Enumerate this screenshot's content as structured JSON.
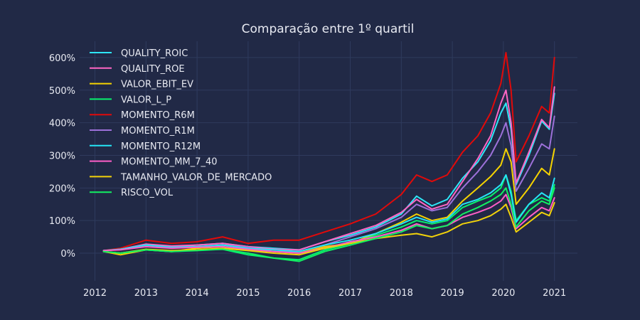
{
  "chart_data": {
    "type": "line",
    "title": "Comparação entre 1º quartil",
    "xlabel": "",
    "ylabel": "",
    "xlim": [
      2011.7,
      2021.45
    ],
    "ylim": [
      -85,
      650
    ],
    "x_ticks": [
      2012,
      2013,
      2014,
      2015,
      2016,
      2017,
      2018,
      2019,
      2020,
      2021
    ],
    "y_ticks": [
      0,
      100,
      200,
      300,
      400,
      500,
      600
    ],
    "x_tick_labels": [
      "2012",
      "2013",
      "2014",
      "2015",
      "2016",
      "2017",
      "2018",
      "2019",
      "2020",
      "2021"
    ],
    "y_tick_labels": [
      "0%",
      "100%",
      "200%",
      "300%",
      "400%",
      "500%",
      "600%"
    ],
    "grid": true,
    "legend_position": "top-left",
    "background": "#212946",
    "grid_color": "#2f3b5e",
    "series": [
      {
        "name": "QUALITY_ROIC",
        "color": "#2ee6f7",
        "points": [
          [
            2012.17,
            8
          ],
          [
            2012.5,
            12
          ],
          [
            2013.0,
            25
          ],
          [
            2013.5,
            20
          ],
          [
            2014.0,
            25
          ],
          [
            2014.5,
            30
          ],
          [
            2015.0,
            20
          ],
          [
            2015.5,
            15
          ],
          [
            2016.0,
            10
          ],
          [
            2016.5,
            35
          ],
          [
            2017.0,
            55
          ],
          [
            2017.5,
            80
          ],
          [
            2018.0,
            120
          ],
          [
            2018.3,
            175
          ],
          [
            2018.6,
            145
          ],
          [
            2018.9,
            165
          ],
          [
            2019.2,
            230
          ],
          [
            2019.5,
            280
          ],
          [
            2019.75,
            345
          ],
          [
            2019.95,
            430
          ],
          [
            2020.05,
            460
          ],
          [
            2020.15,
            380
          ],
          [
            2020.25,
            210
          ],
          [
            2020.5,
            300
          ],
          [
            2020.75,
            405
          ],
          [
            2020.9,
            380
          ],
          [
            2021.0,
            490
          ]
        ]
      },
      {
        "name": "QUALITY_ROE",
        "color": "#ff66c4",
        "points": [
          [
            2012.17,
            8
          ],
          [
            2012.5,
            12
          ],
          [
            2013.0,
            28
          ],
          [
            2013.5,
            22
          ],
          [
            2014.0,
            25
          ],
          [
            2014.5,
            30
          ],
          [
            2015.0,
            20
          ],
          [
            2015.5,
            12
          ],
          [
            2016.0,
            10
          ],
          [
            2016.5,
            35
          ],
          [
            2017.0,
            60
          ],
          [
            2017.5,
            85
          ],
          [
            2018.0,
            125
          ],
          [
            2018.3,
            165
          ],
          [
            2018.6,
            135
          ],
          [
            2018.9,
            150
          ],
          [
            2019.2,
            220
          ],
          [
            2019.5,
            290
          ],
          [
            2019.75,
            360
          ],
          [
            2019.95,
            460
          ],
          [
            2020.05,
            500
          ],
          [
            2020.15,
            400
          ],
          [
            2020.25,
            215
          ],
          [
            2020.5,
            310
          ],
          [
            2020.75,
            410
          ],
          [
            2020.9,
            385
          ],
          [
            2021.0,
            510
          ]
        ]
      },
      {
        "name": "VALOR_EBIT_EV",
        "color": "#f5d300",
        "points": [
          [
            2012.17,
            5
          ],
          [
            2012.5,
            -5
          ],
          [
            2013.0,
            10
          ],
          [
            2013.5,
            5
          ],
          [
            2014.0,
            15
          ],
          [
            2014.5,
            20
          ],
          [
            2015.0,
            10
          ],
          [
            2015.5,
            5
          ],
          [
            2016.0,
            0
          ],
          [
            2016.5,
            20
          ],
          [
            2017.0,
            30
          ],
          [
            2017.5,
            60
          ],
          [
            2018.0,
            95
          ],
          [
            2018.3,
            120
          ],
          [
            2018.6,
            100
          ],
          [
            2018.9,
            110
          ],
          [
            2019.2,
            160
          ],
          [
            2019.5,
            200
          ],
          [
            2019.75,
            235
          ],
          [
            2019.95,
            270
          ],
          [
            2020.05,
            320
          ],
          [
            2020.15,
            280
          ],
          [
            2020.25,
            150
          ],
          [
            2020.5,
            200
          ],
          [
            2020.75,
            260
          ],
          [
            2020.9,
            240
          ],
          [
            2021.0,
            320
          ]
        ]
      },
      {
        "name": "VALOR_L_P",
        "color": "#08f26e",
        "points": [
          [
            2012.17,
            5
          ],
          [
            2012.5,
            0
          ],
          [
            2013.0,
            10
          ],
          [
            2013.5,
            5
          ],
          [
            2014.0,
            10
          ],
          [
            2014.5,
            12
          ],
          [
            2015.0,
            -5
          ],
          [
            2015.5,
            -15
          ],
          [
            2016.0,
            -20
          ],
          [
            2016.5,
            10
          ],
          [
            2017.0,
            30
          ],
          [
            2017.5,
            55
          ],
          [
            2018.0,
            80
          ],
          [
            2018.3,
            100
          ],
          [
            2018.6,
            90
          ],
          [
            2018.9,
            100
          ],
          [
            2019.2,
            140
          ],
          [
            2019.5,
            160
          ],
          [
            2019.75,
            175
          ],
          [
            2019.95,
            200
          ],
          [
            2020.05,
            240
          ],
          [
            2020.15,
            190
          ],
          [
            2020.25,
            100
          ],
          [
            2020.5,
            150
          ],
          [
            2020.75,
            170
          ],
          [
            2020.9,
            160
          ],
          [
            2021.0,
            210
          ]
        ]
      },
      {
        "name": "MOMENTO_R6M",
        "color": "#e10a0a",
        "points": [
          [
            2012.17,
            8
          ],
          [
            2012.5,
            15
          ],
          [
            2013.0,
            40
          ],
          [
            2013.5,
            30
          ],
          [
            2014.0,
            35
          ],
          [
            2014.5,
            50
          ],
          [
            2015.0,
            30
          ],
          [
            2015.5,
            40
          ],
          [
            2016.0,
            40
          ],
          [
            2016.5,
            65
          ],
          [
            2017.0,
            90
          ],
          [
            2017.5,
            120
          ],
          [
            2018.0,
            180
          ],
          [
            2018.3,
            240
          ],
          [
            2018.6,
            220
          ],
          [
            2018.9,
            240
          ],
          [
            2019.2,
            310
          ],
          [
            2019.5,
            360
          ],
          [
            2019.75,
            430
          ],
          [
            2019.95,
            520
          ],
          [
            2020.05,
            615
          ],
          [
            2020.15,
            500
          ],
          [
            2020.25,
            280
          ],
          [
            2020.5,
            360
          ],
          [
            2020.75,
            450
          ],
          [
            2020.9,
            430
          ],
          [
            2021.0,
            600
          ]
        ]
      },
      {
        "name": "MOMENTO_R1M",
        "color": "#9d71d9",
        "points": [
          [
            2012.17,
            8
          ],
          [
            2012.5,
            12
          ],
          [
            2013.0,
            25
          ],
          [
            2013.5,
            18
          ],
          [
            2014.0,
            20
          ],
          [
            2014.5,
            25
          ],
          [
            2015.0,
            18
          ],
          [
            2015.5,
            5
          ],
          [
            2016.0,
            5
          ],
          [
            2016.5,
            25
          ],
          [
            2017.0,
            50
          ],
          [
            2017.5,
            75
          ],
          [
            2018.0,
            110
          ],
          [
            2018.3,
            150
          ],
          [
            2018.6,
            130
          ],
          [
            2018.9,
            140
          ],
          [
            2019.2,
            200
          ],
          [
            2019.5,
            250
          ],
          [
            2019.75,
            300
          ],
          [
            2019.95,
            360
          ],
          [
            2020.05,
            400
          ],
          [
            2020.15,
            330
          ],
          [
            2020.25,
            190
          ],
          [
            2020.5,
            260
          ],
          [
            2020.75,
            335
          ],
          [
            2020.9,
            320
          ],
          [
            2021.0,
            420
          ]
        ]
      },
      {
        "name": "MOMENTO_R12M",
        "color": "#25e5f5",
        "points": [
          [
            2012.17,
            8
          ],
          [
            2012.5,
            12
          ],
          [
            2013.0,
            25
          ],
          [
            2013.5,
            18
          ],
          [
            2014.0,
            20
          ],
          [
            2014.5,
            25
          ],
          [
            2015.0,
            15
          ],
          [
            2015.5,
            10
          ],
          [
            2016.0,
            5
          ],
          [
            2016.5,
            25
          ],
          [
            2017.0,
            40
          ],
          [
            2017.5,
            60
          ],
          [
            2018.0,
            90
          ],
          [
            2018.3,
            110
          ],
          [
            2018.6,
            95
          ],
          [
            2018.9,
            105
          ],
          [
            2019.2,
            150
          ],
          [
            2019.5,
            165
          ],
          [
            2019.75,
            185
          ],
          [
            2019.95,
            210
          ],
          [
            2020.05,
            240
          ],
          [
            2020.15,
            180
          ],
          [
            2020.25,
            95
          ],
          [
            2020.5,
            150
          ],
          [
            2020.75,
            185
          ],
          [
            2020.9,
            170
          ],
          [
            2021.0,
            230
          ]
        ]
      },
      {
        "name": "MOMENTO_MM_7_40",
        "color": "#ff5ec8",
        "points": [
          [
            2012.17,
            8
          ],
          [
            2012.5,
            10
          ],
          [
            2013.0,
            20
          ],
          [
            2013.5,
            15
          ],
          [
            2014.0,
            18
          ],
          [
            2014.5,
            20
          ],
          [
            2015.0,
            12
          ],
          [
            2015.5,
            5
          ],
          [
            2016.0,
            0
          ],
          [
            2016.5,
            15
          ],
          [
            2017.0,
            35
          ],
          [
            2017.5,
            50
          ],
          [
            2018.0,
            70
          ],
          [
            2018.3,
            90
          ],
          [
            2018.6,
            75
          ],
          [
            2018.9,
            85
          ],
          [
            2019.2,
            110
          ],
          [
            2019.5,
            125
          ],
          [
            2019.75,
            140
          ],
          [
            2019.95,
            160
          ],
          [
            2020.05,
            180
          ],
          [
            2020.15,
            140
          ],
          [
            2020.25,
            75
          ],
          [
            2020.5,
            110
          ],
          [
            2020.75,
            140
          ],
          [
            2020.9,
            130
          ],
          [
            2021.0,
            170
          ]
        ]
      },
      {
        "name": "TAMANHO_VALOR_DE_MERCADO",
        "color": "#f2d20a",
        "points": [
          [
            2012.17,
            5
          ],
          [
            2012.5,
            0
          ],
          [
            2013.0,
            12
          ],
          [
            2013.5,
            8
          ],
          [
            2014.0,
            10
          ],
          [
            2014.5,
            15
          ],
          [
            2015.0,
            8
          ],
          [
            2015.5,
            0
          ],
          [
            2016.0,
            -5
          ],
          [
            2016.5,
            15
          ],
          [
            2017.0,
            30
          ],
          [
            2017.5,
            45
          ],
          [
            2018.0,
            55
          ],
          [
            2018.3,
            60
          ],
          [
            2018.6,
            50
          ],
          [
            2018.9,
            65
          ],
          [
            2019.2,
            90
          ],
          [
            2019.5,
            100
          ],
          [
            2019.75,
            115
          ],
          [
            2019.95,
            135
          ],
          [
            2020.05,
            150
          ],
          [
            2020.15,
            110
          ],
          [
            2020.25,
            65
          ],
          [
            2020.5,
            95
          ],
          [
            2020.75,
            125
          ],
          [
            2020.9,
            115
          ],
          [
            2021.0,
            155
          ]
        ]
      },
      {
        "name": "RISCO_VOL",
        "color": "#12f062",
        "points": [
          [
            2012.17,
            5
          ],
          [
            2012.5,
            0
          ],
          [
            2013.0,
            10
          ],
          [
            2013.5,
            5
          ],
          [
            2014.0,
            8
          ],
          [
            2014.5,
            12
          ],
          [
            2015.0,
            0
          ],
          [
            2015.5,
            -15
          ],
          [
            2016.0,
            -25
          ],
          [
            2016.5,
            5
          ],
          [
            2017.0,
            25
          ],
          [
            2017.5,
            45
          ],
          [
            2018.0,
            65
          ],
          [
            2018.3,
            85
          ],
          [
            2018.6,
            75
          ],
          [
            2018.9,
            85
          ],
          [
            2019.2,
            120
          ],
          [
            2019.5,
            140
          ],
          [
            2019.75,
            160
          ],
          [
            2019.95,
            180
          ],
          [
            2020.05,
            200
          ],
          [
            2020.15,
            150
          ],
          [
            2020.25,
            80
          ],
          [
            2020.5,
            130
          ],
          [
            2020.75,
            160
          ],
          [
            2020.9,
            150
          ],
          [
            2021.0,
            200
          ]
        ]
      }
    ]
  }
}
